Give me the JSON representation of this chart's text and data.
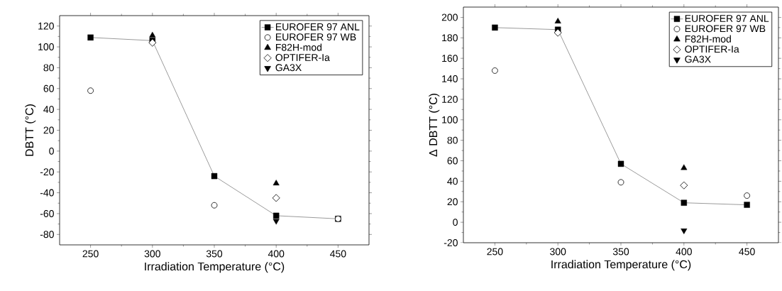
{
  "chart_data": [
    {
      "type": "scatter",
      "xlabel": "Irradiation Temperature (°C)",
      "ylabel": "DBTT (°C)",
      "x": [
        250,
        300,
        350,
        400,
        450
      ],
      "xlim": [
        225,
        475
      ],
      "xticks": [
        250,
        300,
        350,
        400,
        450
      ],
      "ylim": [
        -90,
        130
      ],
      "yticks": [
        -80,
        -60,
        -40,
        -20,
        0,
        20,
        40,
        60,
        80,
        100,
        120
      ],
      "legend": "top right",
      "grid": false,
      "series": [
        {
          "name": "EUROFER 97 ANL",
          "type": "line",
          "marker": "square",
          "color": "#000000",
          "values": [
            109,
            106,
            -24,
            -62,
            -65
          ]
        },
        {
          "name": "EUROFER 97 WB",
          "marker": "circle",
          "color": "#000000",
          "values": [
            58,
            null,
            -52,
            null,
            -65
          ]
        },
        {
          "name": "F82H-mod",
          "marker": "triangle",
          "color": "#000000",
          "values": [
            null,
            111,
            null,
            -31,
            null
          ]
        },
        {
          "name": "OPTIFER-Ia",
          "marker": "diamond",
          "color": "#000000",
          "values": [
            null,
            104,
            null,
            -45,
            null
          ]
        },
        {
          "name": "GA3X",
          "marker": "triangle-down",
          "color": "#000000",
          "values": [
            null,
            null,
            null,
            -67,
            null
          ]
        }
      ]
    },
    {
      "type": "scatter",
      "xlabel": "Irradiation Temperature (°C)",
      "ylabel": "Δ DBTT (°C)",
      "x": [
        250,
        300,
        350,
        400,
        450
      ],
      "xlim": [
        225,
        475
      ],
      "xticks": [
        250,
        300,
        350,
        400,
        450
      ],
      "ylim": [
        -20,
        210
      ],
      "yticks": [
        -20,
        0,
        20,
        40,
        60,
        80,
        100,
        120,
        140,
        160,
        180,
        200
      ],
      "legend": "top right",
      "grid": false,
      "series": [
        {
          "name": "EUROFER 97 ANL",
          "type": "line",
          "marker": "square",
          "color": "#000000",
          "values": [
            190,
            188,
            57,
            19,
            17
          ]
        },
        {
          "name": "EUROFER 97 WB",
          "marker": "circle",
          "color": "#000000",
          "values": [
            148,
            null,
            39,
            null,
            26
          ]
        },
        {
          "name": "F82H-mod",
          "marker": "triangle",
          "color": "#000000",
          "values": [
            null,
            196,
            null,
            53,
            null
          ]
        },
        {
          "name": "OPTIFER-Ia",
          "marker": "diamond",
          "color": "#000000",
          "values": [
            null,
            185,
            null,
            36,
            null
          ]
        },
        {
          "name": "GA3X",
          "marker": "triangle-down",
          "color": "#000000",
          "values": [
            null,
            null,
            null,
            -8,
            null
          ]
        }
      ]
    }
  ]
}
